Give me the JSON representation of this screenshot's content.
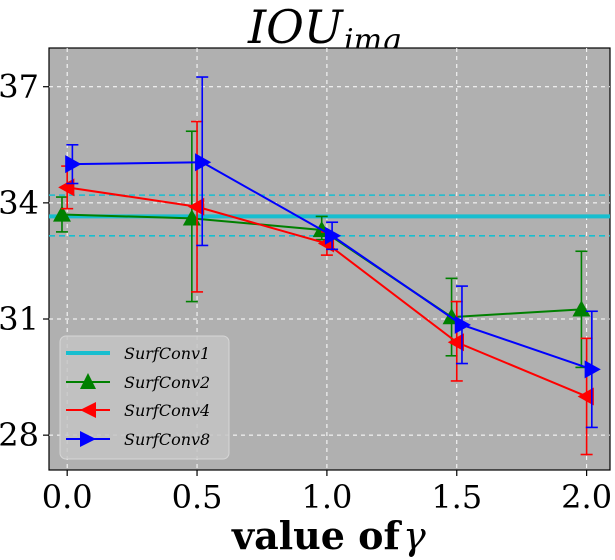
{
  "chart_data": {
    "type": "line",
    "title": "IOU",
    "title_subscript": "img",
    "xlabel": "value of",
    "xlabel_symbol": "γ",
    "ylabel": "",
    "xlim": [
      -0.07,
      2.09
    ],
    "ylim": [
      27.1,
      38.0
    ],
    "xticks": [
      0.0,
      0.5,
      1.0,
      1.5,
      2.0
    ],
    "xtick_labels": [
      "0.0",
      "0.5",
      "1.0",
      "1.5",
      "2.0"
    ],
    "yticks": [
      28,
      31,
      34,
      37
    ],
    "ytick_labels": [
      "28",
      "31",
      "34",
      "37"
    ],
    "grid": true,
    "legend_position": "lower-left",
    "baseline": {
      "name": "SurfConv1",
      "value": 33.65,
      "band": [
        33.15,
        34.2
      ],
      "color": "#17becf"
    },
    "series": [
      {
        "name": "SurfConv2",
        "color": "#008000",
        "marker": "triangle-up",
        "x": [
          -0.02,
          0.48,
          0.98,
          1.48,
          1.98
        ],
        "values": [
          33.7,
          33.6,
          33.3,
          31.05,
          31.25
        ],
        "err_low": [
          0.45,
          2.15,
          0.25,
          1.0,
          1.5
        ],
        "err_high": [
          0.45,
          2.25,
          0.35,
          1.0,
          1.5
        ]
      },
      {
        "name": "SurfConv4",
        "color": "#ff0000",
        "marker": "triangle-left",
        "x": [
          0.0,
          0.5,
          1.0,
          1.5,
          2.0
        ],
        "values": [
          34.4,
          33.9,
          32.95,
          30.4,
          29.0
        ],
        "err_low": [
          0.55,
          2.2,
          0.3,
          1.0,
          1.5
        ],
        "err_high": [
          0.55,
          2.2,
          0.3,
          1.05,
          1.5
        ]
      },
      {
        "name": "SurfConv8",
        "color": "#0000ff",
        "marker": "triangle-right",
        "x": [
          0.02,
          0.52,
          1.02,
          1.52,
          2.02
        ],
        "values": [
          35.0,
          35.05,
          33.15,
          30.85,
          29.7
        ],
        "err_low": [
          0.5,
          2.15,
          0.35,
          1.0,
          1.5
        ],
        "err_high": [
          0.5,
          2.2,
          0.35,
          1.0,
          1.5
        ]
      }
    ]
  }
}
